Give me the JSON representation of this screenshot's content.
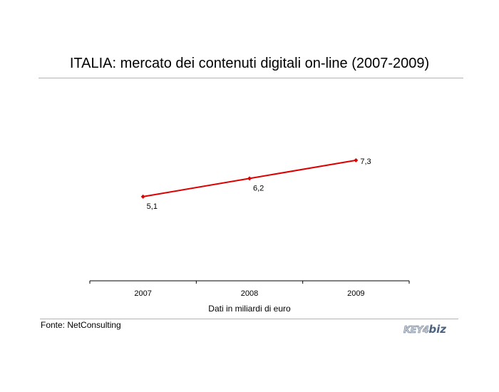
{
  "chart_data": {
    "type": "line",
    "title": "ITALIA: mercato dei contenuti digitali on-line (2007-2009)",
    "xlabel": "Dati in miliardi di euro",
    "ylabel": "",
    "categories": [
      "2007",
      "2008",
      "2009"
    ],
    "series": [
      {
        "values": [
          5.1,
          6.2,
          7.3
        ],
        "labels": [
          "5,1",
          "6,2",
          "7,3"
        ],
        "color": "#dd0000"
      }
    ],
    "ylim": [
      0,
      12
    ],
    "grid": false,
    "legend": "none"
  },
  "source": "Fonte: NetConsulting",
  "logo": {
    "prefix": "KEY4",
    "suffix": "biz",
    "colors": {
      "primary": "#4a6280",
      "light": "#c9ced6"
    }
  }
}
